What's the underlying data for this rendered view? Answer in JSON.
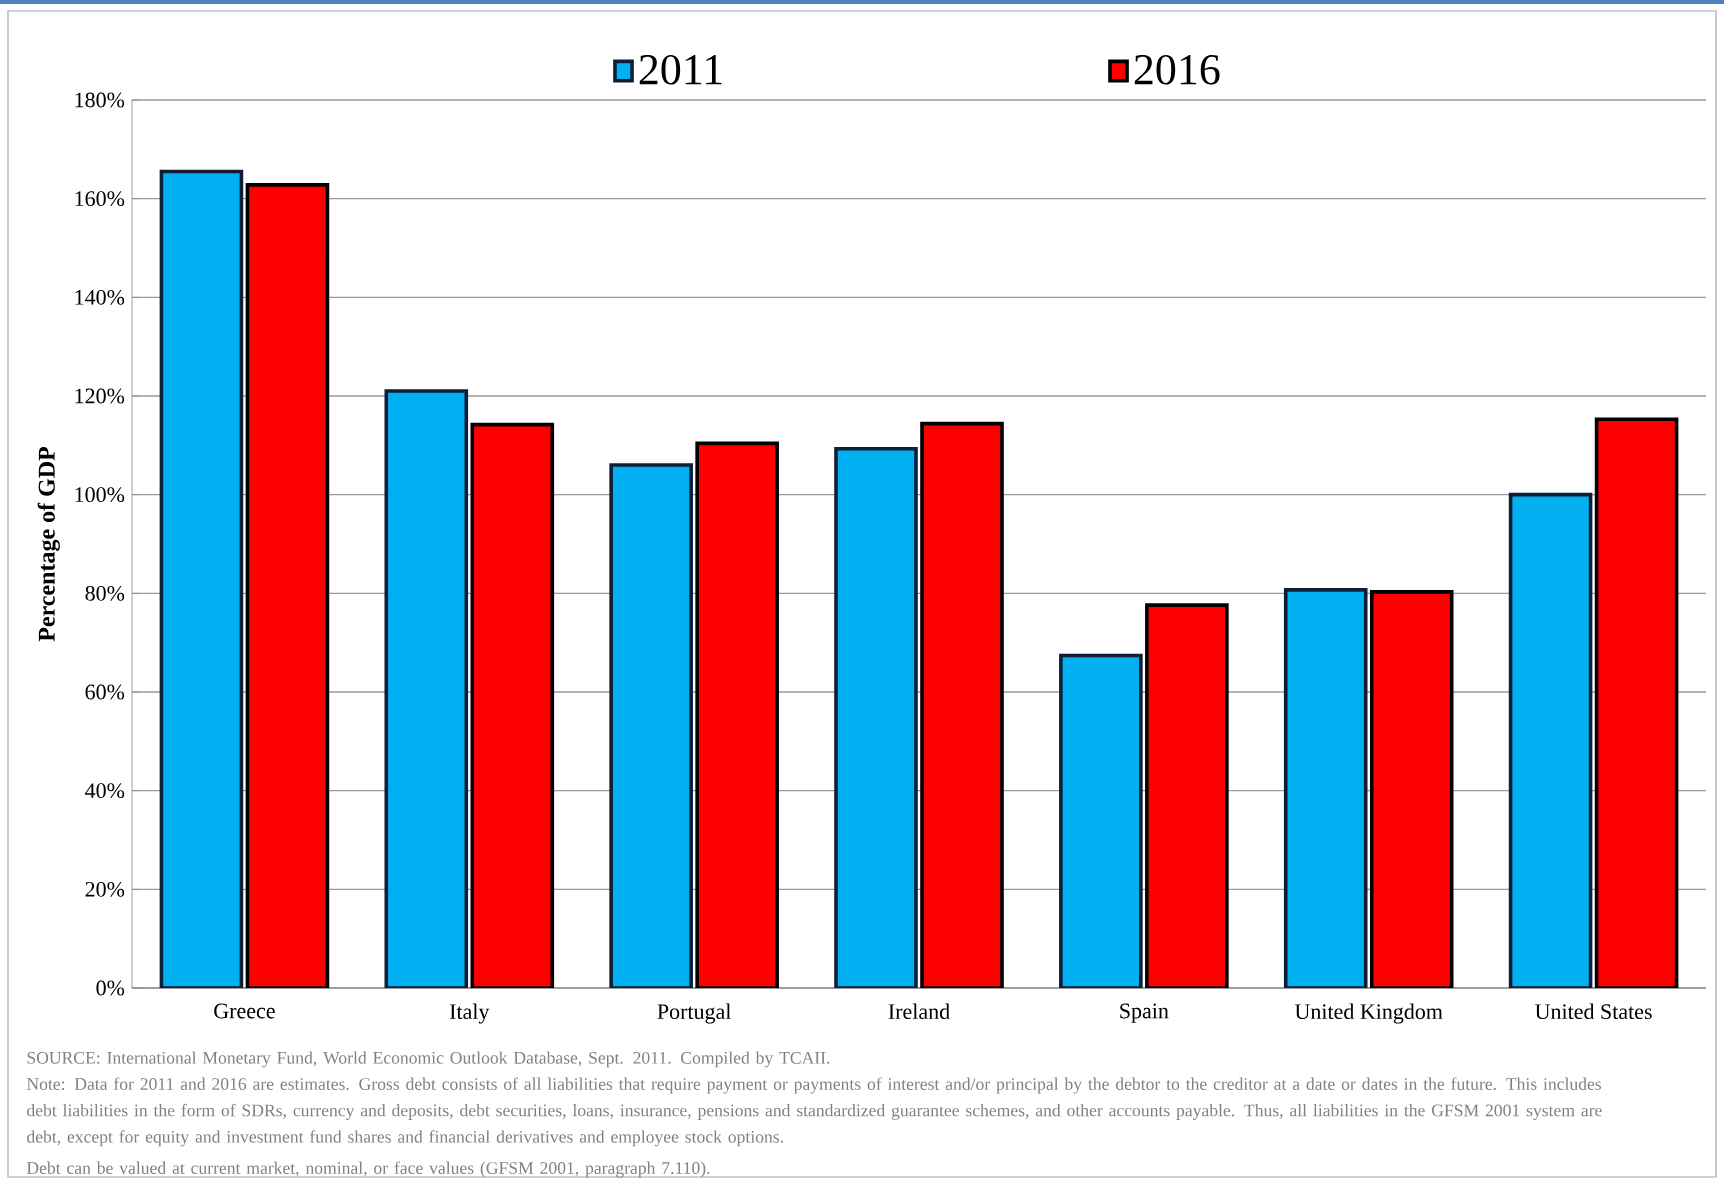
{
  "chart_data": {
    "type": "bar",
    "ylabel": "Percentage of GDP",
    "categories": [
      "Greece",
      "Italy",
      "Portugal",
      "Ireland",
      "Spain",
      "United Kingdom",
      "United States"
    ],
    "series": [
      {
        "name": "2011",
        "color": "#00b0f0",
        "values": [
          165.5,
          121,
          106,
          109.3,
          67.4,
          80.7,
          100
        ]
      },
      {
        "name": "2016",
        "color": "#ff0000",
        "values": [
          162.8,
          114.2,
          110.4,
          114.4,
          77.6,
          80.3,
          115.3
        ]
      }
    ],
    "ylim": [
      0,
      180
    ],
    "yticks": [
      {
        "value": 0,
        "label": "0%"
      },
      {
        "value": 20,
        "label": "20%"
      },
      {
        "value": 40,
        "label": "40%"
      },
      {
        "value": 60,
        "label": "60%"
      },
      {
        "value": 80,
        "label": "80%"
      },
      {
        "value": 100,
        "label": "100%"
      },
      {
        "value": 120,
        "label": "120%"
      },
      {
        "value": 140,
        "label": "140%"
      },
      {
        "value": 160,
        "label": "160%"
      },
      {
        "value": 180,
        "label": "180%"
      }
    ],
    "grid": "y",
    "legend": "top",
    "annotations": [
      "SOURCE: International Monetary Fund, World Economic Outlook Database, Sept. 2011. Compiled by TCAII.",
      "Note: Data for 2011 and 2016 are estimates. Gross debt consists of all liabilities that require payment or payments of interest and/or principal by the debtor to the creditor at a date or dates in the future. This includes debt liabilities in the form of SDRs, currency and deposits, debt securities, loans, insurance, pensions and standardized guarantee schemes, and other accounts payable. Thus, all liabilities in the GFSM 2001 system are debt, except for equity and investment fund shares and financial derivatives and employee stock options.",
      "Debt can be valued at current market, nominal, or face values (GFSM 2001, paragraph 7.110)."
    ]
  }
}
